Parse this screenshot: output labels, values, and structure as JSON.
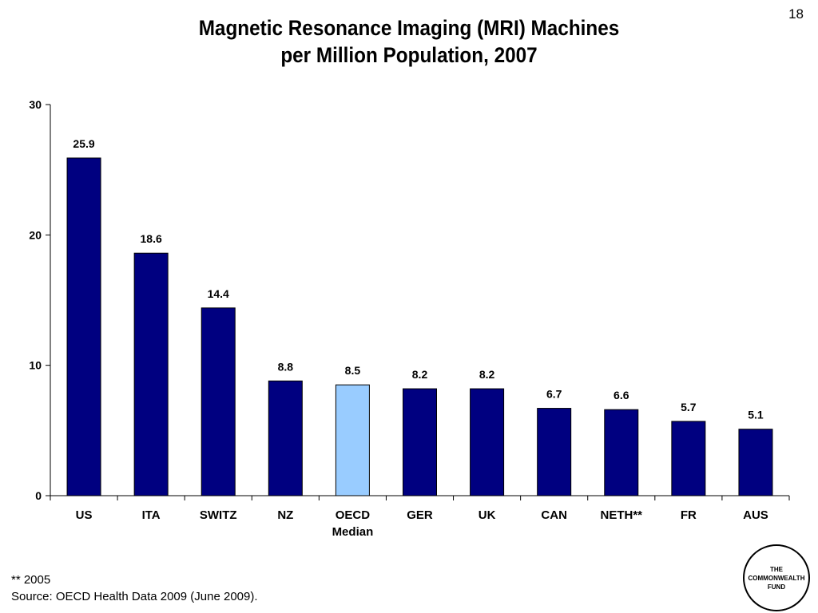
{
  "page": {
    "number": "18"
  },
  "chart_data": {
    "type": "bar",
    "title": "Magnetic Resonance Imaging (MRI) Machines per Million Population, 2007",
    "title_lines": [
      "Magnetic Resonance Imaging (MRI) Machines",
      "per Million Population, 2007"
    ],
    "categories": [
      "US",
      "ITA",
      "SWITZ",
      "NZ",
      "OECD Median",
      "GER",
      "UK",
      "CAN",
      "NETH**",
      "FR",
      "AUS"
    ],
    "category_lines": [
      [
        "US"
      ],
      [
        "ITA"
      ],
      [
        "SWITZ"
      ],
      [
        "NZ"
      ],
      [
        "OECD",
        "Median"
      ],
      [
        "GER"
      ],
      [
        "UK"
      ],
      [
        "CAN"
      ],
      [
        "NETH**"
      ],
      [
        "FR"
      ],
      [
        "AUS"
      ]
    ],
    "values": [
      25.9,
      18.6,
      14.4,
      8.8,
      8.5,
      8.2,
      8.2,
      6.7,
      6.6,
      5.7,
      5.1
    ],
    "data_labels": [
      "25.9",
      "18.6",
      "14.4",
      "8.8",
      "8.5",
      "8.2",
      "8.2",
      "6.7",
      "6.6",
      "5.7",
      "5.1"
    ],
    "ylim": [
      0,
      30
    ],
    "yticks": [
      0,
      10,
      20,
      30
    ],
    "xlabel": "",
    "ylabel": "",
    "grid": false,
    "legend": "none",
    "colors": {
      "bar": "#000080",
      "highlight": "#99CCFF",
      "axis": "#000000"
    },
    "highlight_index": 4
  },
  "footnotes": {
    "note": "** 2005",
    "source": "Source: OECD Health Data 2009 (June 2009)."
  },
  "logo": {
    "lines": [
      "THE",
      "COMMONWEALTH",
      "FUND"
    ]
  }
}
